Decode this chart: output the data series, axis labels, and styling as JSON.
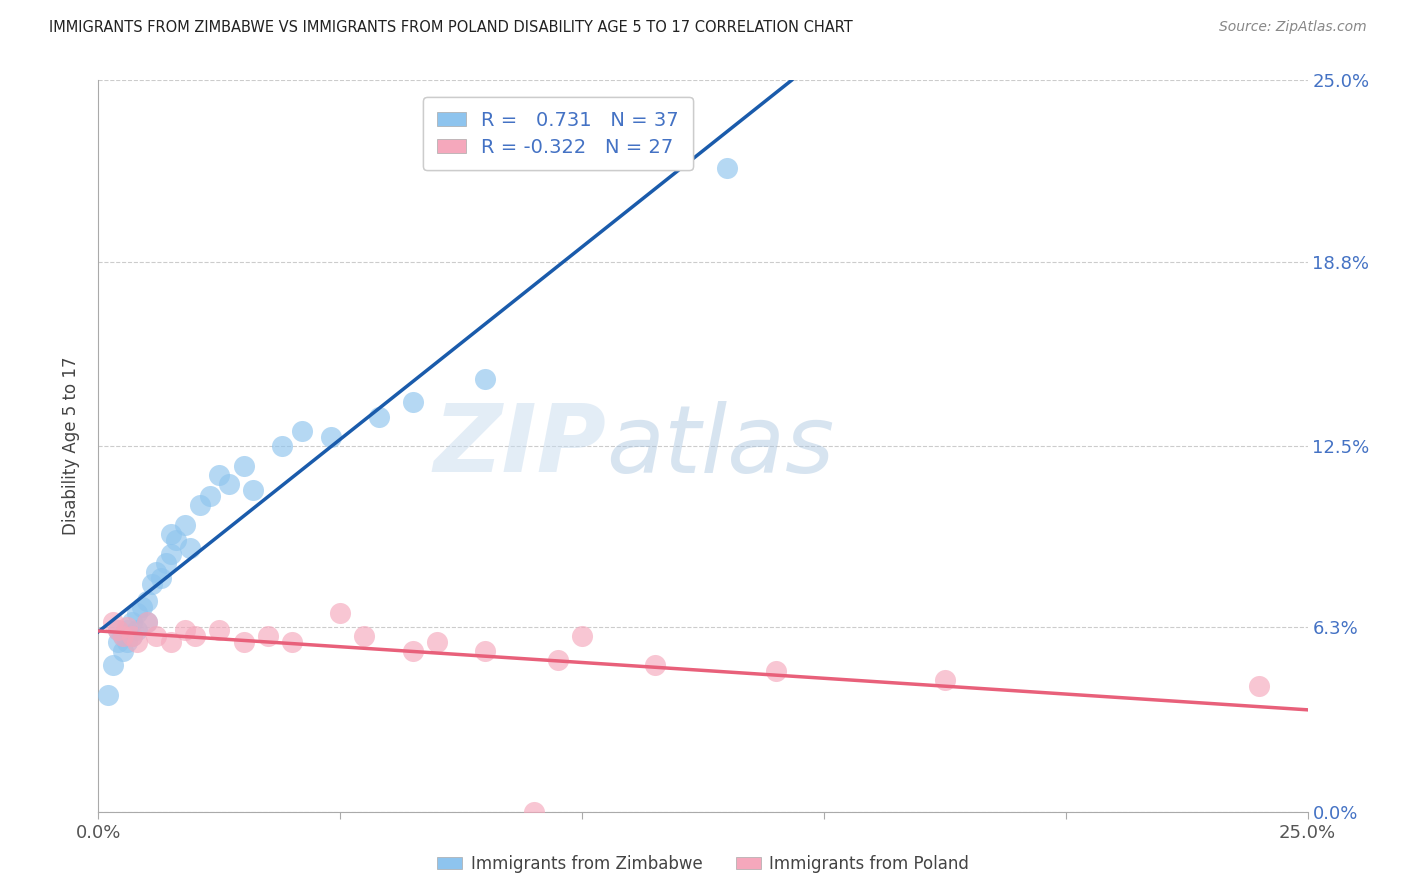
{
  "title": "IMMIGRANTS FROM ZIMBABWE VS IMMIGRANTS FROM POLAND DISABILITY AGE 5 TO 17 CORRELATION CHART",
  "source": "Source: ZipAtlas.com",
  "ylabel": "Disability Age 5 to 17",
  "xlim": [
    0.0,
    0.25
  ],
  "ylim": [
    0.0,
    0.25
  ],
  "r_zim": 0.731,
  "n_zim": 37,
  "r_pol": -0.322,
  "n_pol": 27,
  "watermark_zip": "ZIP",
  "watermark_atlas": "atlas",
  "blue_scatter": "#8EC4EE",
  "pink_scatter": "#F5A8BC",
  "blue_line": "#1A5BAB",
  "pink_line": "#E8607A",
  "right_tick_color": "#4472C4",
  "grid_color": "#CCCCCC",
  "zimbabwe_x": [
    0.002,
    0.003,
    0.004,
    0.004,
    0.005,
    0.005,
    0.006,
    0.006,
    0.007,
    0.007,
    0.008,
    0.008,
    0.009,
    0.01,
    0.01,
    0.011,
    0.012,
    0.013,
    0.014,
    0.015,
    0.015,
    0.016,
    0.018,
    0.019,
    0.021,
    0.023,
    0.025,
    0.027,
    0.03,
    0.032,
    0.038,
    0.042,
    0.048,
    0.058,
    0.065,
    0.08,
    0.13
  ],
  "zimbabwe_y": [
    0.04,
    0.05,
    0.058,
    0.062,
    0.055,
    0.06,
    0.058,
    0.062,
    0.06,
    0.065,
    0.062,
    0.068,
    0.07,
    0.065,
    0.072,
    0.078,
    0.082,
    0.08,
    0.085,
    0.088,
    0.095,
    0.093,
    0.098,
    0.09,
    0.105,
    0.108,
    0.115,
    0.112,
    0.118,
    0.11,
    0.125,
    0.13,
    0.128,
    0.135,
    0.14,
    0.148,
    0.22
  ],
  "poland_x": [
    0.003,
    0.004,
    0.005,
    0.006,
    0.007,
    0.008,
    0.01,
    0.012,
    0.015,
    0.018,
    0.02,
    0.025,
    0.03,
    0.035,
    0.04,
    0.05,
    0.055,
    0.065,
    0.07,
    0.08,
    0.09,
    0.095,
    0.1,
    0.115,
    0.14,
    0.175,
    0.24
  ],
  "poland_y": [
    0.065,
    0.062,
    0.06,
    0.063,
    0.06,
    0.058,
    0.065,
    0.06,
    0.058,
    0.062,
    0.06,
    0.062,
    0.058,
    0.06,
    0.058,
    0.068,
    0.06,
    0.055,
    0.058,
    0.055,
    0.0,
    0.052,
    0.06,
    0.05,
    0.048,
    0.045,
    0.043
  ],
  "legend1_label": "R =   0.731   N = 37",
  "legend2_label": "R = -0.322   N = 27",
  "series1_label": "Immigrants from Zimbabwe",
  "series2_label": "Immigrants from Poland",
  "ytick_positions": [
    0.0,
    0.063,
    0.125,
    0.188,
    0.25
  ],
  "ytick_labels_right": [
    "0.0%",
    "6.3%",
    "12.5%",
    "18.8%",
    "25.0%"
  ],
  "xtick_positions": [
    0.0,
    0.05,
    0.1,
    0.15,
    0.2,
    0.25
  ],
  "xtick_labels": [
    "0.0%",
    "",
    "",
    "",
    "",
    "25.0%"
  ]
}
